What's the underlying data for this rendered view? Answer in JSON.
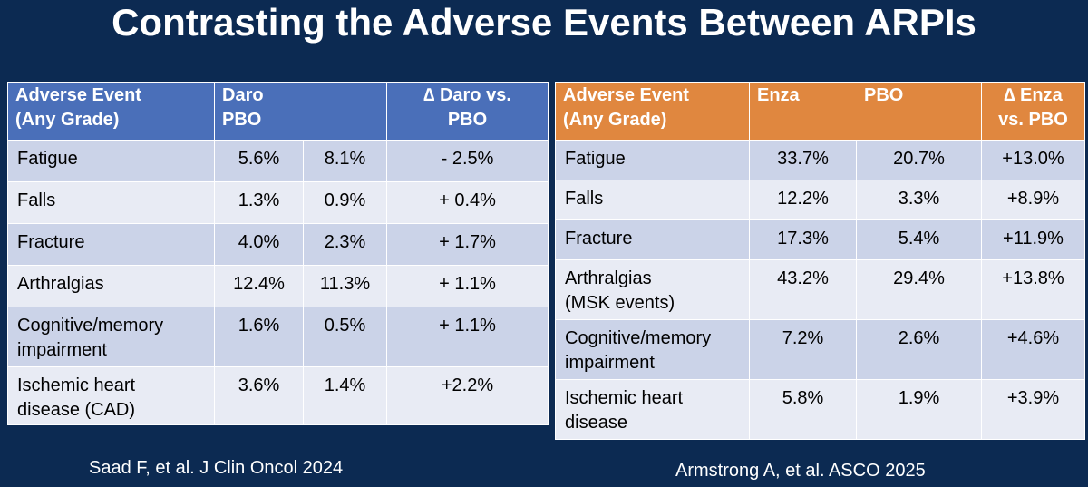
{
  "title": "Contrasting the Adverse Events Between ARPIs",
  "left_table": {
    "header": {
      "event_line1": "Adverse Event",
      "event_line2": "(Any Grade)",
      "drug_line1": "Daro",
      "drug_line2": "PBO",
      "delta_line1": "∆ Daro vs.",
      "delta_line2": "PBO"
    },
    "rows": [
      {
        "event_line1": "Fatigue",
        "event_line2": "",
        "drug": "5.6%",
        "pbo": "8.1%",
        "delta": "- 2.5%"
      },
      {
        "event_line1": "Falls",
        "event_line2": "",
        "drug": "1.3%",
        "pbo": "0.9%",
        "delta": "+ 0.4%"
      },
      {
        "event_line1": "Fracture",
        "event_line2": "",
        "drug": "4.0%",
        "pbo": "2.3%",
        "delta": "+ 1.7%"
      },
      {
        "event_line1": "Arthralgias",
        "event_line2": "",
        "drug": "12.4%",
        "pbo": "11.3%",
        "delta": "+ 1.1%"
      },
      {
        "event_line1": "Cognitive/memory",
        "event_line2": "impairment",
        "drug": "1.6%",
        "pbo": "0.5%",
        "delta": "+ 1.1%"
      },
      {
        "event_line1": "Ischemic heart",
        "event_line2": "disease (CAD)",
        "drug": "3.6%",
        "pbo": "1.4%",
        "delta": "+2.2%"
      }
    ],
    "citation": "Saad F, et al. J Clin Oncol 2024"
  },
  "right_table": {
    "header": {
      "event_line1": "Adverse Event",
      "event_line2": "(Any Grade)",
      "drug_label": "Enza",
      "pbo_label": "PBO",
      "delta_line1": "∆ Enza",
      "delta_line2": "vs. PBO"
    },
    "rows": [
      {
        "event_line1": "Fatigue",
        "event_line2": "",
        "drug": "33.7%",
        "pbo": "20.7%",
        "delta": "+13.0%"
      },
      {
        "event_line1": "Falls",
        "event_line2": "",
        "drug": "12.2%",
        "pbo": "3.3%",
        "delta": "+8.9%"
      },
      {
        "event_line1": "Fracture",
        "event_line2": "",
        "drug": "17.3%",
        "pbo": "5.4%",
        "delta": "+11.9%"
      },
      {
        "event_line1": "Arthralgias",
        "event_line2": "(MSK events)",
        "drug": "43.2%",
        "pbo": "29.4%",
        "delta": "+13.8%"
      },
      {
        "event_line1": "Cognitive/memory",
        "event_line2": "impairment",
        "drug": "7.2%",
        "pbo": "2.6%",
        "delta": "+4.6%"
      },
      {
        "event_line1": "Ischemic heart",
        "event_line2": "disease",
        "drug": "5.8%",
        "pbo": "1.9%",
        "delta": "+3.9%"
      }
    ],
    "citation": "Armstrong A, et al. ASCO 2025"
  },
  "colors": {
    "background": "#0c2a52",
    "left_header": "#4a6fb9",
    "right_header": "#e0873f",
    "row_odd": "#cbd3e8",
    "row_even": "#e8ebf4"
  }
}
